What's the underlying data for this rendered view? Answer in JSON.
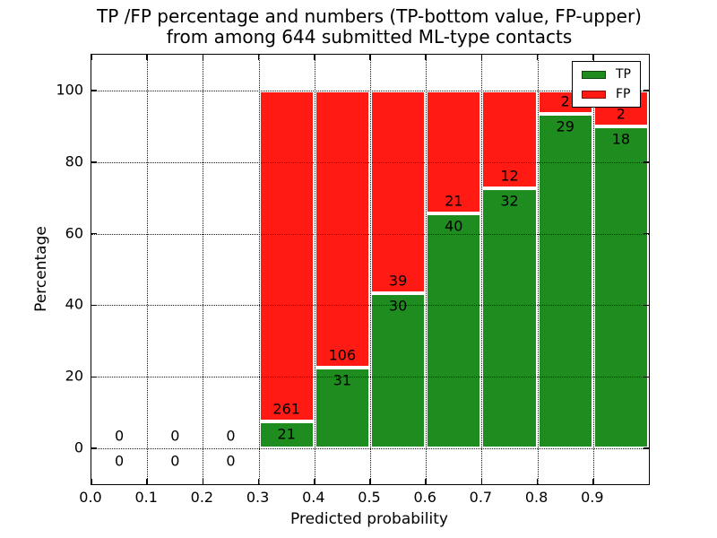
{
  "chart_data": {
    "type": "bar",
    "stacked": true,
    "title_line1": "TP /FP percentage and numbers (TP-bottom value, FP-upper)",
    "title_line2": "from among 644 submitted ML-type contacts",
    "xlabel": "Predicted probability",
    "ylabel": "Percentage",
    "xlim": [
      0.0,
      1.0
    ],
    "ylim": [
      -10,
      110
    ],
    "xticks": [
      0.0,
      0.1,
      0.2,
      0.3,
      0.4,
      0.5,
      0.6,
      0.7,
      0.8,
      0.9
    ],
    "yticks": [
      0,
      20,
      40,
      60,
      80,
      100
    ],
    "grid_style": "dotted",
    "legend_position": "upper right",
    "series": [
      {
        "name": "TP",
        "color": "#1f8c1f"
      },
      {
        "name": "FP",
        "color": "#ff1a13"
      }
    ],
    "bins": [
      {
        "x_start": 0.0,
        "x_end": 0.1,
        "tp": 0,
        "fp": 0
      },
      {
        "x_start": 0.1,
        "x_end": 0.2,
        "tp": 0,
        "fp": 0
      },
      {
        "x_start": 0.2,
        "x_end": 0.3,
        "tp": 0,
        "fp": 0
      },
      {
        "x_start": 0.3,
        "x_end": 0.4,
        "tp": 21,
        "fp": 261
      },
      {
        "x_start": 0.4,
        "x_end": 0.5,
        "tp": 31,
        "fp": 106
      },
      {
        "x_start": 0.5,
        "x_end": 0.6,
        "tp": 30,
        "fp": 39
      },
      {
        "x_start": 0.6,
        "x_end": 0.7,
        "tp": 40,
        "fp": 21
      },
      {
        "x_start": 0.7,
        "x_end": 0.8,
        "tp": 32,
        "fp": 12
      },
      {
        "x_start": 0.8,
        "x_end": 0.9,
        "tp": 29,
        "fp": 2
      },
      {
        "x_start": 0.9,
        "x_end": 1.0,
        "tp": 18,
        "fp": 2
      }
    ]
  }
}
